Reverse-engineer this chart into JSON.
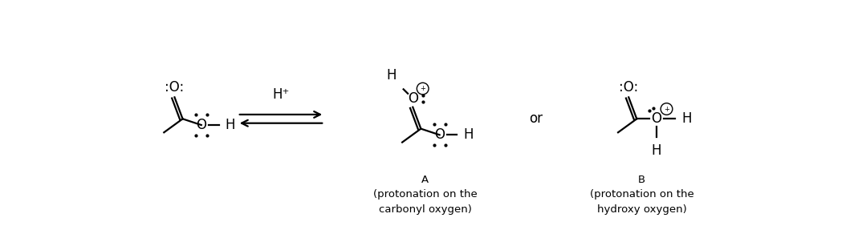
{
  "bg_color": "#ffffff",
  "fig_width": 10.64,
  "fig_height": 3.12,
  "lw": 1.6,
  "fs_mol": 12,
  "fs_label": 9.5,
  "color": "#000000",
  "label_A": "A\n(protonation on the\ncarbonyl oxygen)",
  "label_B": "B\n(protonation on the\nhydroxy oxygen)",
  "label_or": "or",
  "Hplus": "H⁺"
}
